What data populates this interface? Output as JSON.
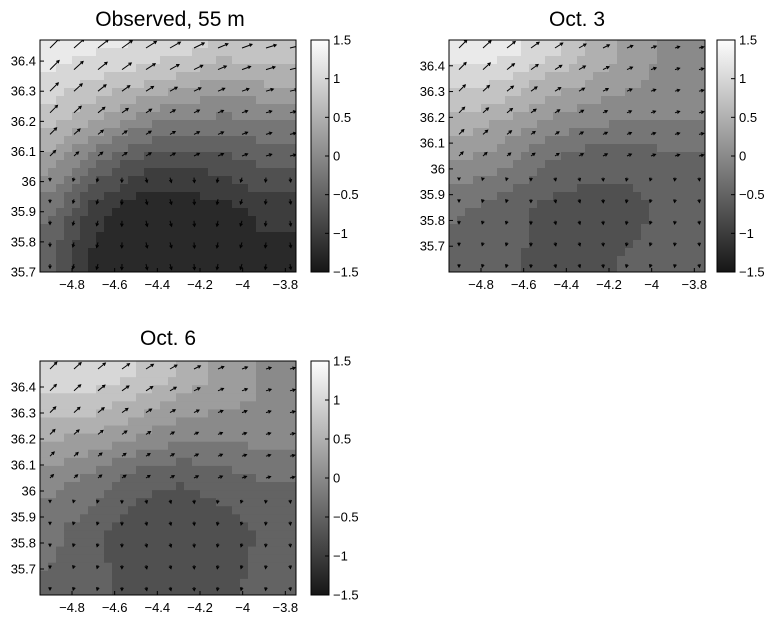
{
  "chart_data": [
    {
      "type": "heatmap",
      "title": "Observed, 55 m",
      "xlabel": "",
      "ylabel": "",
      "xlim": [
        -4.95,
        -3.75
      ],
      "ylim": [
        35.7,
        36.47
      ],
      "xticks": [
        -4.8,
        -4.6,
        -4.4,
        -4.2,
        -4,
        -3.8
      ],
      "yticks": [
        35.7,
        35.8,
        35.9,
        36,
        36.1,
        36.2,
        36.3,
        36.4
      ],
      "colorbar": {
        "ticks": [
          1.5,
          1,
          0.5,
          0,
          -0.5,
          -1,
          -1.5
        ],
        "range": [
          -1.5,
          1.5
        ],
        "colormap": "gray"
      },
      "field": {
        "x": [
          -4.9,
          -4.7,
          -4.5,
          -4.3,
          -4.1,
          -3.9
        ],
        "y": [
          35.75,
          35.9,
          36.05,
          36.2,
          36.35,
          36.45
        ],
        "values": [
          [
            -0.6,
            -1.2,
            -1.35,
            -1.35,
            -1.3,
            -1.2
          ],
          [
            -0.3,
            -1.0,
            -1.3,
            -1.3,
            -1.25,
            -1.05
          ],
          [
            0.2,
            -0.4,
            -0.8,
            -0.9,
            -0.8,
            -0.6
          ],
          [
            0.7,
            0.4,
            0.0,
            -0.2,
            -0.2,
            -0.2
          ],
          [
            1.1,
            0.9,
            0.8,
            0.6,
            0.4,
            0.5
          ],
          [
            1.3,
            1.2,
            1.1,
            1.0,
            0.8,
            0.8
          ]
        ]
      },
      "vectors": {
        "grid": "regular",
        "description": "arrows pointing north-east along the front in the upper half, weaker southward flow in the lower half"
      }
    },
    {
      "type": "heatmap",
      "title": "Oct. 3",
      "xlabel": "",
      "ylabel": "",
      "xlim": [
        -4.95,
        -3.75
      ],
      "ylim": [
        35.6,
        36.5
      ],
      "xticks": [
        -4.8,
        -4.6,
        -4.4,
        -4.2,
        -4,
        -3.8
      ],
      "yticks": [
        35.7,
        35.8,
        35.9,
        36,
        36.1,
        36.2,
        36.3,
        36.4
      ],
      "colorbar": {
        "ticks": [
          1.5,
          1,
          0.5,
          0,
          -0.5,
          -1,
          -1.5
        ],
        "range": [
          -1.5,
          1.5
        ],
        "colormap": "gray"
      },
      "field": {
        "x": [
          -4.9,
          -4.7,
          -4.5,
          -4.3,
          -4.1,
          -3.9
        ],
        "y": [
          35.65,
          35.85,
          36.05,
          36.2,
          36.35,
          36.45
        ],
        "values": [
          [
            -0.45,
            -0.55,
            -0.7,
            -0.7,
            -0.6,
            -0.5
          ],
          [
            -0.35,
            -0.5,
            -0.7,
            -0.75,
            -0.7,
            -0.55
          ],
          [
            0.2,
            0.0,
            -0.3,
            -0.5,
            -0.5,
            -0.4
          ],
          [
            0.6,
            0.4,
            0.15,
            0.0,
            -0.1,
            -0.1
          ],
          [
            1.0,
            0.9,
            0.6,
            0.4,
            0.2,
            0.0
          ],
          [
            1.3,
            1.2,
            1.0,
            0.6,
            0.3,
            0.0
          ]
        ]
      },
      "vectors": {
        "grid": "regular",
        "description": "north-east arrows in the upper-left half, weak flow elsewhere"
      }
    },
    {
      "type": "heatmap",
      "title": "Oct. 6",
      "xlabel": "",
      "ylabel": "",
      "xlim": [
        -4.95,
        -3.75
      ],
      "ylim": [
        35.6,
        36.5
      ],
      "xticks": [
        -4.8,
        -4.6,
        -4.4,
        -4.2,
        -4,
        -3.8
      ],
      "yticks": [
        35.7,
        35.8,
        35.9,
        36,
        36.1,
        36.2,
        36.3,
        36.4
      ],
      "colorbar": {
        "ticks": [
          1.5,
          1,
          0.5,
          0,
          -0.5,
          -1,
          -1.5
        ],
        "range": [
          -1.5,
          1.5
        ],
        "colormap": "gray"
      },
      "field": {
        "x": [
          -4.9,
          -4.7,
          -4.5,
          -4.3,
          -4.1,
          -3.9
        ],
        "y": [
          35.65,
          35.85,
          36.05,
          36.2,
          36.35,
          36.45
        ],
        "values": [
          [
            -0.4,
            -0.55,
            -0.75,
            -0.8,
            -0.7,
            -0.55
          ],
          [
            -0.3,
            -0.55,
            -0.8,
            -0.85,
            -0.75,
            -0.6
          ],
          [
            0.0,
            -0.2,
            -0.5,
            -0.6,
            -0.5,
            -0.35
          ],
          [
            0.4,
            0.3,
            0.1,
            -0.1,
            -0.1,
            -0.05
          ],
          [
            0.8,
            0.8,
            0.6,
            0.35,
            0.2,
            0.1
          ],
          [
            1.0,
            1.0,
            0.9,
            0.6,
            0.3,
            0.1
          ]
        ]
      },
      "vectors": {
        "grid": "regular",
        "description": "north-east arrows across the upper half, weak flow in the lower half"
      }
    }
  ]
}
